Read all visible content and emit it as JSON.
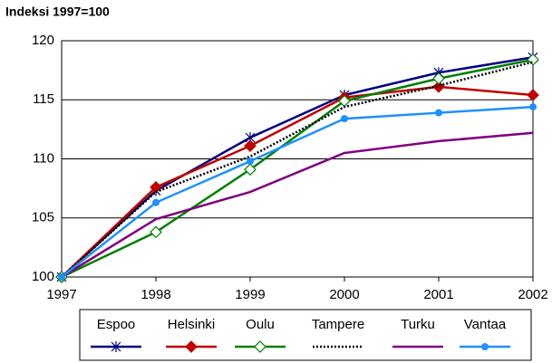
{
  "chart_data": {
    "type": "line",
    "title": "Indeksi 1997=100",
    "categories": [
      "1997",
      "1998",
      "1999",
      "2000",
      "2001",
      "2002"
    ],
    "ylim": [
      100,
      120
    ],
    "yticks": [
      100,
      105,
      110,
      115,
      120
    ],
    "grid": true,
    "series": [
      {
        "name": "Espoo",
        "color": "#000080",
        "marker": "asterisk",
        "values": [
          100,
          107.3,
          111.8,
          115.4,
          117.3,
          118.6
        ]
      },
      {
        "name": "Helsinki",
        "color": "#c00000",
        "marker": "diamond",
        "values": [
          100,
          107.6,
          111.1,
          115.2,
          116.1,
          115.4
        ]
      },
      {
        "name": "Oulu",
        "color": "#008000",
        "marker": "open-diamond",
        "values": [
          100,
          103.8,
          109.1,
          114.9,
          116.8,
          118.4
        ]
      },
      {
        "name": "Tampere",
        "color": "#000000",
        "dashed": true,
        "values": [
          100,
          107.2,
          110.2,
          114.4,
          116.2,
          118.2
        ]
      },
      {
        "name": "Turku",
        "color": "#800080",
        "values": [
          100,
          104.9,
          107.2,
          110.5,
          111.5,
          112.2
        ]
      },
      {
        "name": "Vantaa",
        "color": "#1e90ff",
        "marker": "circle",
        "values": [
          100,
          106.3,
          109.8,
          113.4,
          113.9,
          114.4
        ]
      }
    ]
  }
}
